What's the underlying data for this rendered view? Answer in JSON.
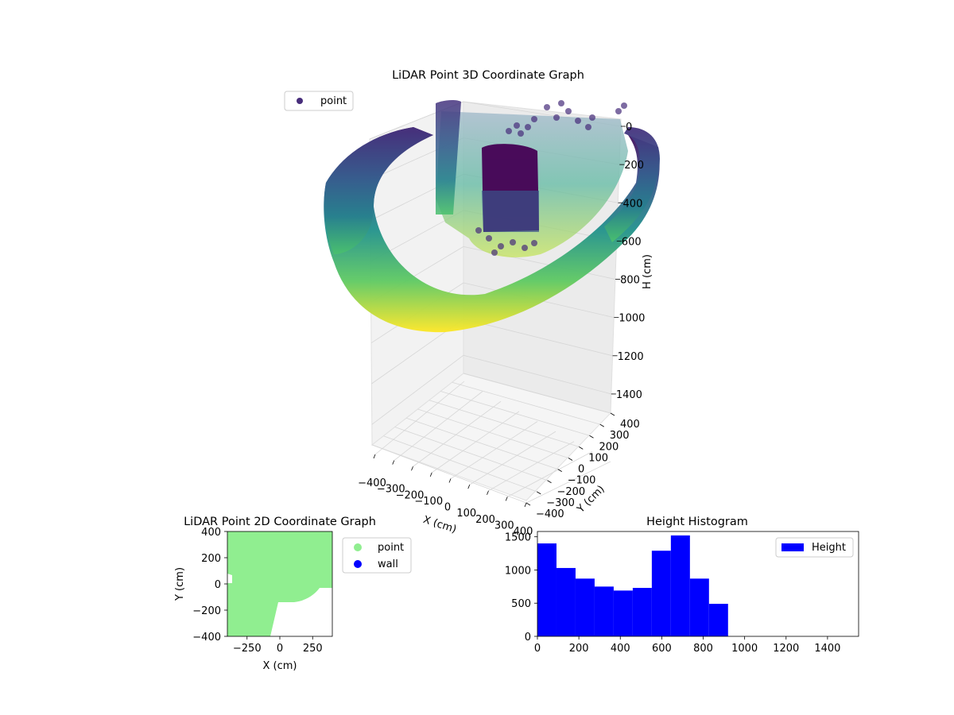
{
  "chart_data": [
    {
      "type": "scatter3d",
      "title": "LiDAR Point 3D Coordinate Graph",
      "xlabel": "X (cm)",
      "ylabel": "Y (cm)",
      "zlabel": "H (cm)",
      "xticks": [
        "−400",
        "−300",
        "−200",
        "−100",
        "0",
        "100",
        "200",
        "300",
        "400"
      ],
      "yticks": [
        "−400",
        "−300",
        "−200",
        "−100",
        "0",
        "100",
        "200",
        "300",
        "400"
      ],
      "zticks": [
        "0",
        "200",
        "400",
        "600",
        "800",
        "1000",
        "1200",
        "1400"
      ],
      "xlim": [
        -400,
        400
      ],
      "ylim": [
        -400,
        400
      ],
      "zlim": [
        0,
        1500
      ],
      "z_inverted": true,
      "colormap": "viridis",
      "legend": [
        {
          "label": "point",
          "color": "#472d7b"
        }
      ],
      "legend_loc": "upper-left",
      "grid": true
    },
    {
      "type": "scatter",
      "title": "LiDAR Point 2D Coordinate Graph",
      "xlabel": "X (cm)",
      "ylabel": "Y (cm)",
      "xticks": [
        "−250",
        "0",
        "250"
      ],
      "yticks": [
        "400",
        "200",
        "0",
        "−200",
        "−400"
      ],
      "xlim": [
        -400,
        400
      ],
      "ylim": [
        -400,
        400
      ],
      "series": [
        {
          "name": "point",
          "color": "#90ee90"
        },
        {
          "name": "wall",
          "color": "#0000ff"
        }
      ],
      "legend_loc": "outside-right"
    },
    {
      "type": "bar",
      "title": "Height Histogram",
      "xticks": [
        "0",
        "200",
        "400",
        "600",
        "800",
        "1000",
        "1200",
        "1400"
      ],
      "yticks": [
        "0",
        "500",
        "1000",
        "1500"
      ],
      "xlim": [
        0,
        1550
      ],
      "ylim": [
        0,
        1580
      ],
      "bin_edges": [
        0,
        92,
        184,
        276,
        368,
        460,
        552,
        644,
        736,
        828,
        920
      ],
      "values": [
        1400,
        1030,
        870,
        750,
        690,
        730,
        1290,
        1520,
        870,
        490
      ],
      "series": [
        {
          "name": "Height",
          "color": "#0000ff"
        }
      ],
      "legend_loc": "top-right"
    }
  ]
}
